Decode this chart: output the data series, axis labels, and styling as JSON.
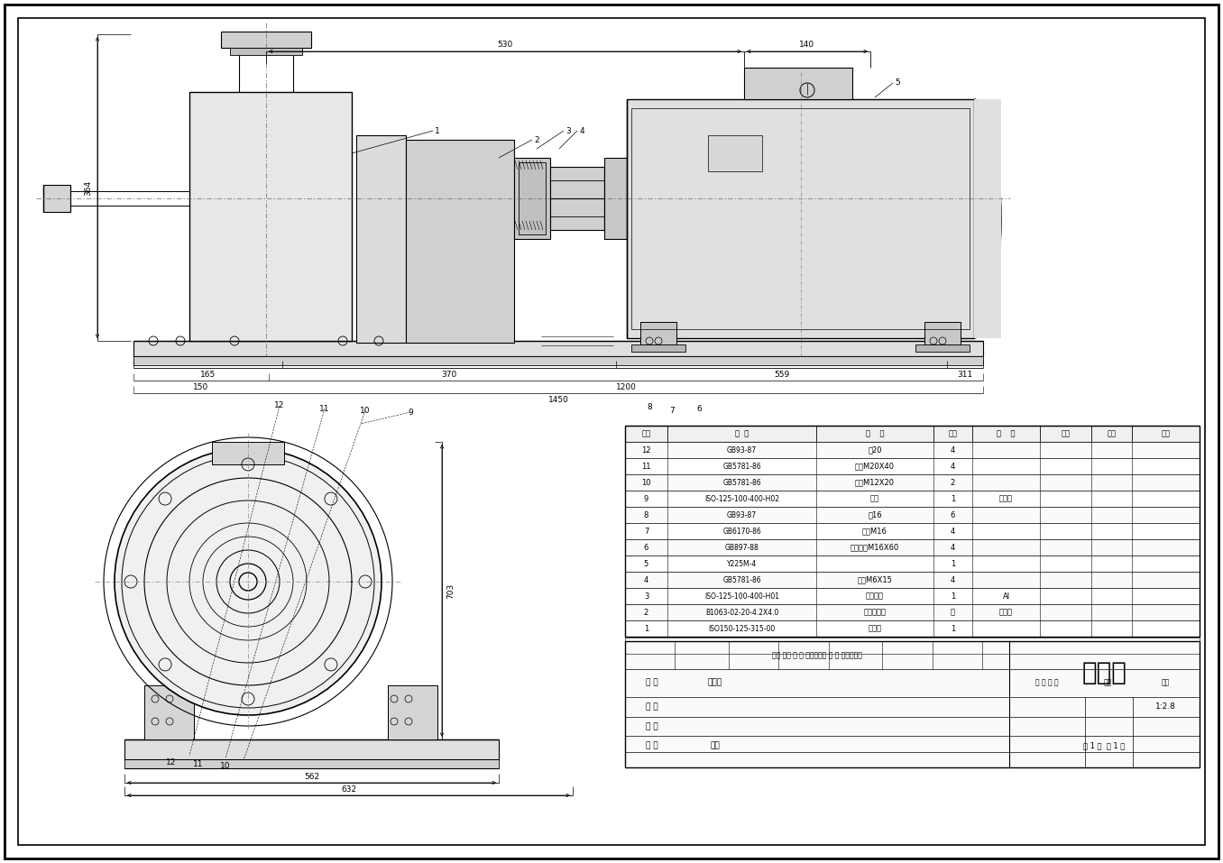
{
  "title": "安装图",
  "scale": "1:2.8",
  "page_info": "共 1 张  第 1 张",
  "bg_color": "#ffffff",
  "line_color": "#000000",
  "dim_color": "#000000",
  "parts_list": [
    {
      "num": "12",
      "code": "GB93-87",
      "name": "垫20",
      "qty": "4",
      "material": "",
      "note": ""
    },
    {
      "num": "11",
      "code": "GB5781-86",
      "name": "螺栓M20X40",
      "qty": "4",
      "material": "",
      "note": ""
    },
    {
      "num": "10",
      "code": "GB5781-86",
      "name": "螺栓M12X20",
      "qty": "2",
      "material": "",
      "note": ""
    },
    {
      "num": "9",
      "code": "ISO-125-100-400-H02",
      "name": "底座",
      "qty": "1",
      "material": "弹簧件",
      "note": ""
    },
    {
      "num": "8",
      "code": "GB93-87",
      "name": "垫16",
      "qty": "6",
      "material": "",
      "note": ""
    },
    {
      "num": "7",
      "code": "GB6170-86",
      "name": "螺母M16",
      "qty": "4",
      "material": "",
      "note": ""
    },
    {
      "num": "6",
      "code": "GB897-88",
      "name": "双头螺柱M16X60",
      "qty": "4",
      "material": "",
      "note": ""
    },
    {
      "num": "5",
      "code": "Y225M-4",
      "name": "",
      "qty": "1",
      "material": "",
      "note": ""
    },
    {
      "num": "4",
      "code": "GB5781-86",
      "name": "螺栓M6X15",
      "qty": "4",
      "material": "",
      "note": ""
    },
    {
      "num": "3",
      "code": "ISO-125-100-400-H01",
      "name": "机架部单",
      "qty": "1",
      "material": "Al",
      "note": ""
    },
    {
      "num": "2",
      "code": "B1063-02-20-4.2X4.0",
      "name": "水长联轴器",
      "qty": "组",
      "material": "组装件",
      "note": ""
    },
    {
      "num": "1",
      "code": "ISO150-125-315-00",
      "name": "泵主机",
      "qty": "1",
      "material": "",
      "note": ""
    }
  ]
}
